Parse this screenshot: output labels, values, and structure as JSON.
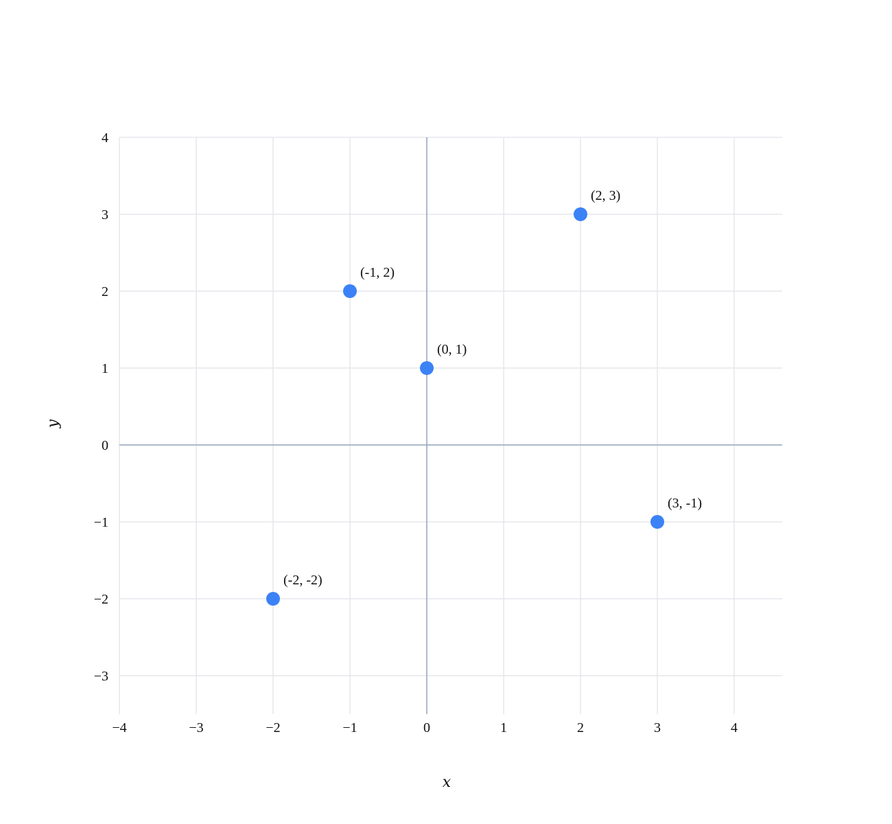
{
  "chart_data": {
    "type": "scatter",
    "title": "",
    "xlabel": "x",
    "ylabel": "y",
    "xlim": [
      -4,
      4.6
    ],
    "ylim": [
      -3.5,
      4
    ],
    "xticks": [
      -4,
      -3,
      -2,
      -1,
      0,
      1,
      2,
      3,
      4
    ],
    "yticks": [
      -3,
      -2,
      -1,
      0,
      1,
      2,
      3,
      4
    ],
    "xtick_labels": [
      "−4",
      "−3",
      "−2",
      "−1",
      "0",
      "1",
      "2",
      "3",
      "4"
    ],
    "ytick_labels": [
      "−3",
      "−2",
      "−1",
      "0",
      "1",
      "2",
      "3",
      "4"
    ],
    "grid": true,
    "point_color": "#3b82f6",
    "points": [
      {
        "x": -2,
        "y": -2,
        "label": "(-2, -2)"
      },
      {
        "x": -1,
        "y": 2,
        "label": "(-1, 2)"
      },
      {
        "x": 0,
        "y": 1,
        "label": "(0, 1)"
      },
      {
        "x": 2,
        "y": 3,
        "label": "(2, 3)"
      },
      {
        "x": 3,
        "y": -1,
        "label": "(3, -1)"
      }
    ]
  }
}
